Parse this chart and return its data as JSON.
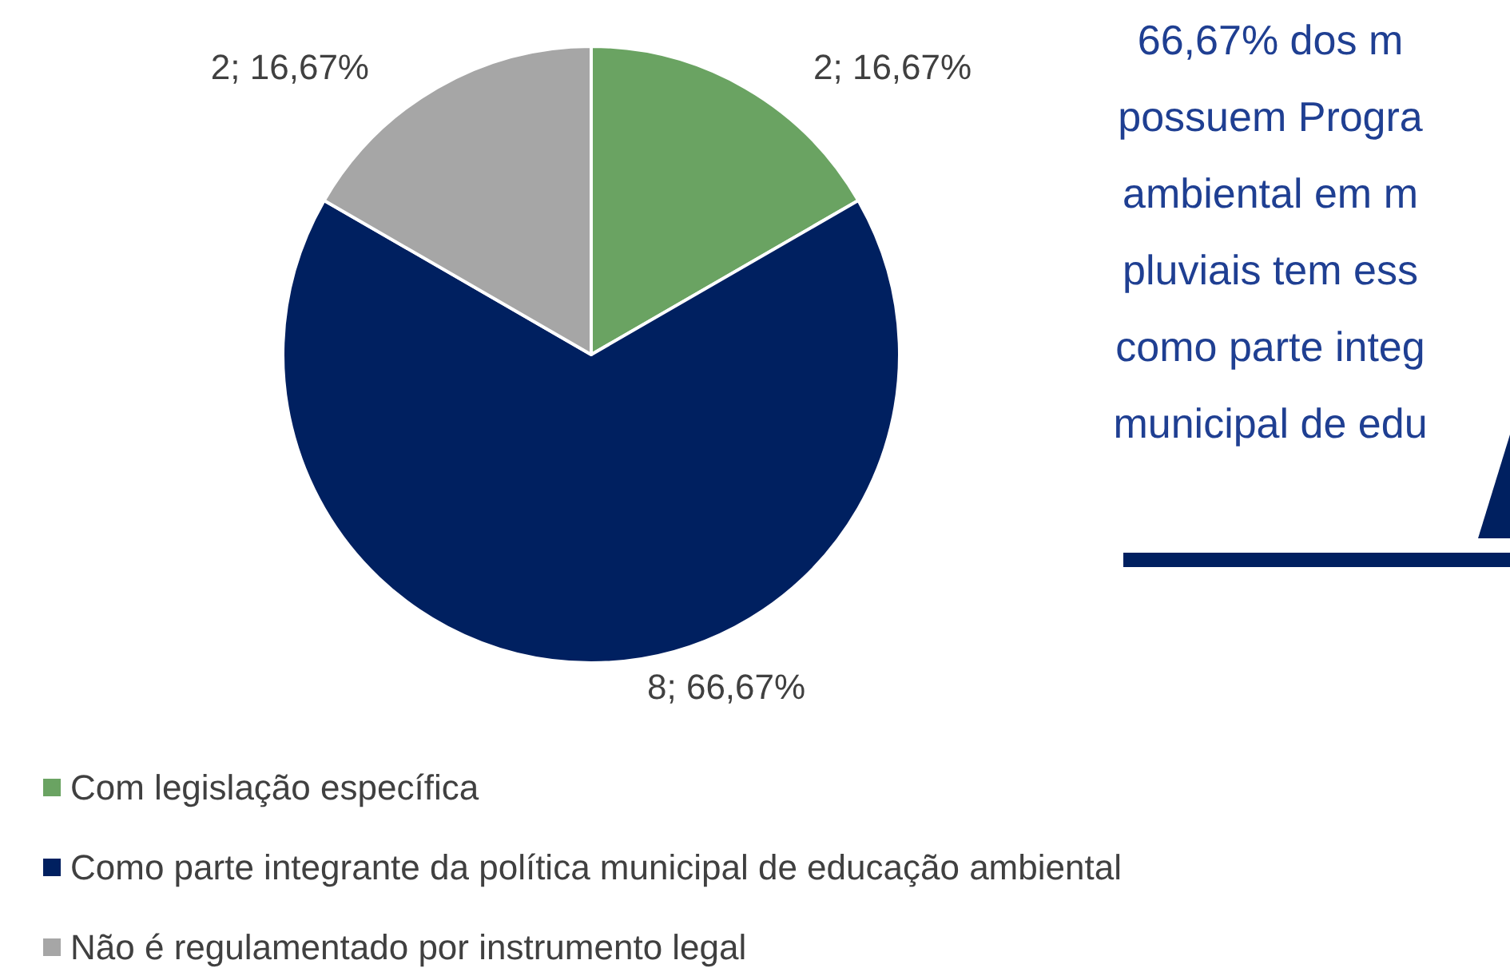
{
  "chart_data": {
    "type": "pie",
    "categories": [
      "Com legislação específica",
      "Como parte integrante da política municipal de educação ambiental",
      "Não é regulamentado por instrumento legal"
    ],
    "values": [
      2,
      8,
      2
    ],
    "colors": [
      "#6aa362",
      "#002060",
      "#a6a6a6"
    ],
    "value_labels": [
      "2; 16,67%",
      "8; 66,67%",
      "2; 16,67%"
    ],
    "legend": "bottom left",
    "annotations": [
      "66,67% dos m",
      "possuem Progra",
      "ambiental em m",
      "pluviais tem ess",
      "como parte integ",
      "municipal de edu"
    ]
  }
}
